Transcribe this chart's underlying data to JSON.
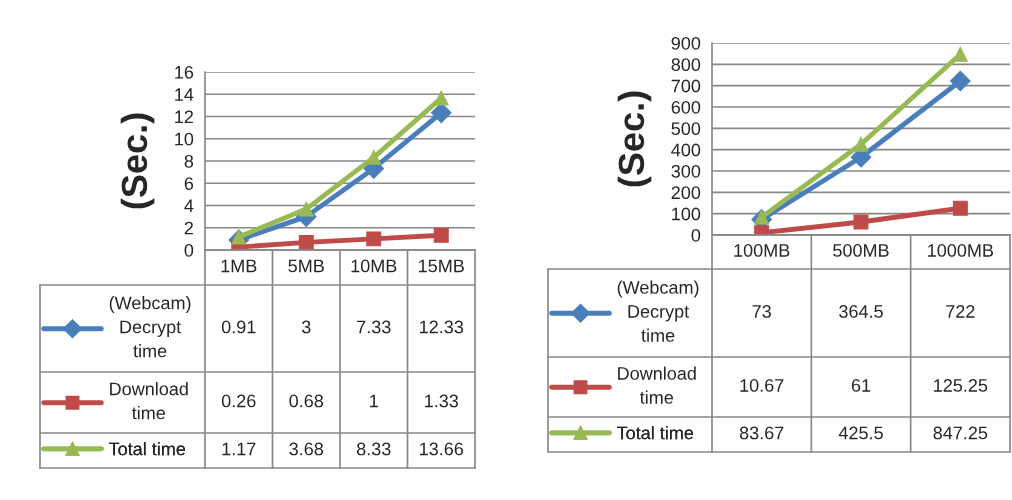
{
  "chart_data": [
    {
      "type": "line",
      "ylabel": "(Sec.)",
      "categories": [
        "1MB",
        "5MB",
        "10MB",
        "15MB"
      ],
      "legend": "bottom left",
      "ylim": [
        0,
        16
      ],
      "yticks": [
        0,
        2,
        4,
        6,
        8,
        10,
        12,
        14,
        16
      ],
      "grid": "y",
      "data_labels": true,
      "series": [
        {
          "name": "(Webcam) Decrypt time",
          "color": "#4a7ebb",
          "marker": "diamond",
          "values": [
            0.91,
            3,
            7.33,
            12.33
          ]
        },
        {
          "name": "Download time",
          "color": "#be4b48",
          "marker": "square",
          "values": [
            0.26,
            0.68,
            1,
            1.33
          ]
        },
        {
          "name": "Total time",
          "color": "#98b954",
          "marker": "triangle",
          "values": [
            1.17,
            3.68,
            8.33,
            13.66
          ]
        }
      ]
    },
    {
      "type": "line",
      "ylabel": "(Sec.)",
      "categories": [
        "100MB",
        "500MB",
        "1000MB"
      ],
      "legend": "bottom left",
      "ylim": [
        0,
        900
      ],
      "yticks": [
        0,
        100,
        200,
        300,
        400,
        500,
        600,
        700,
        800,
        900
      ],
      "grid": "y",
      "data_labels": true,
      "series": [
        {
          "name": "(Webcam) Decrypt time",
          "color": "#4a7ebb",
          "marker": "diamond",
          "values": [
            73,
            364.5,
            722
          ]
        },
        {
          "name": "Download time",
          "color": "#be4b48",
          "marker": "square",
          "values": [
            10.67,
            61,
            125.25
          ]
        },
        {
          "name": "Total time",
          "color": "#98b954",
          "marker": "triangle",
          "values": [
            83.67,
            425.5,
            847.25
          ]
        }
      ]
    }
  ]
}
